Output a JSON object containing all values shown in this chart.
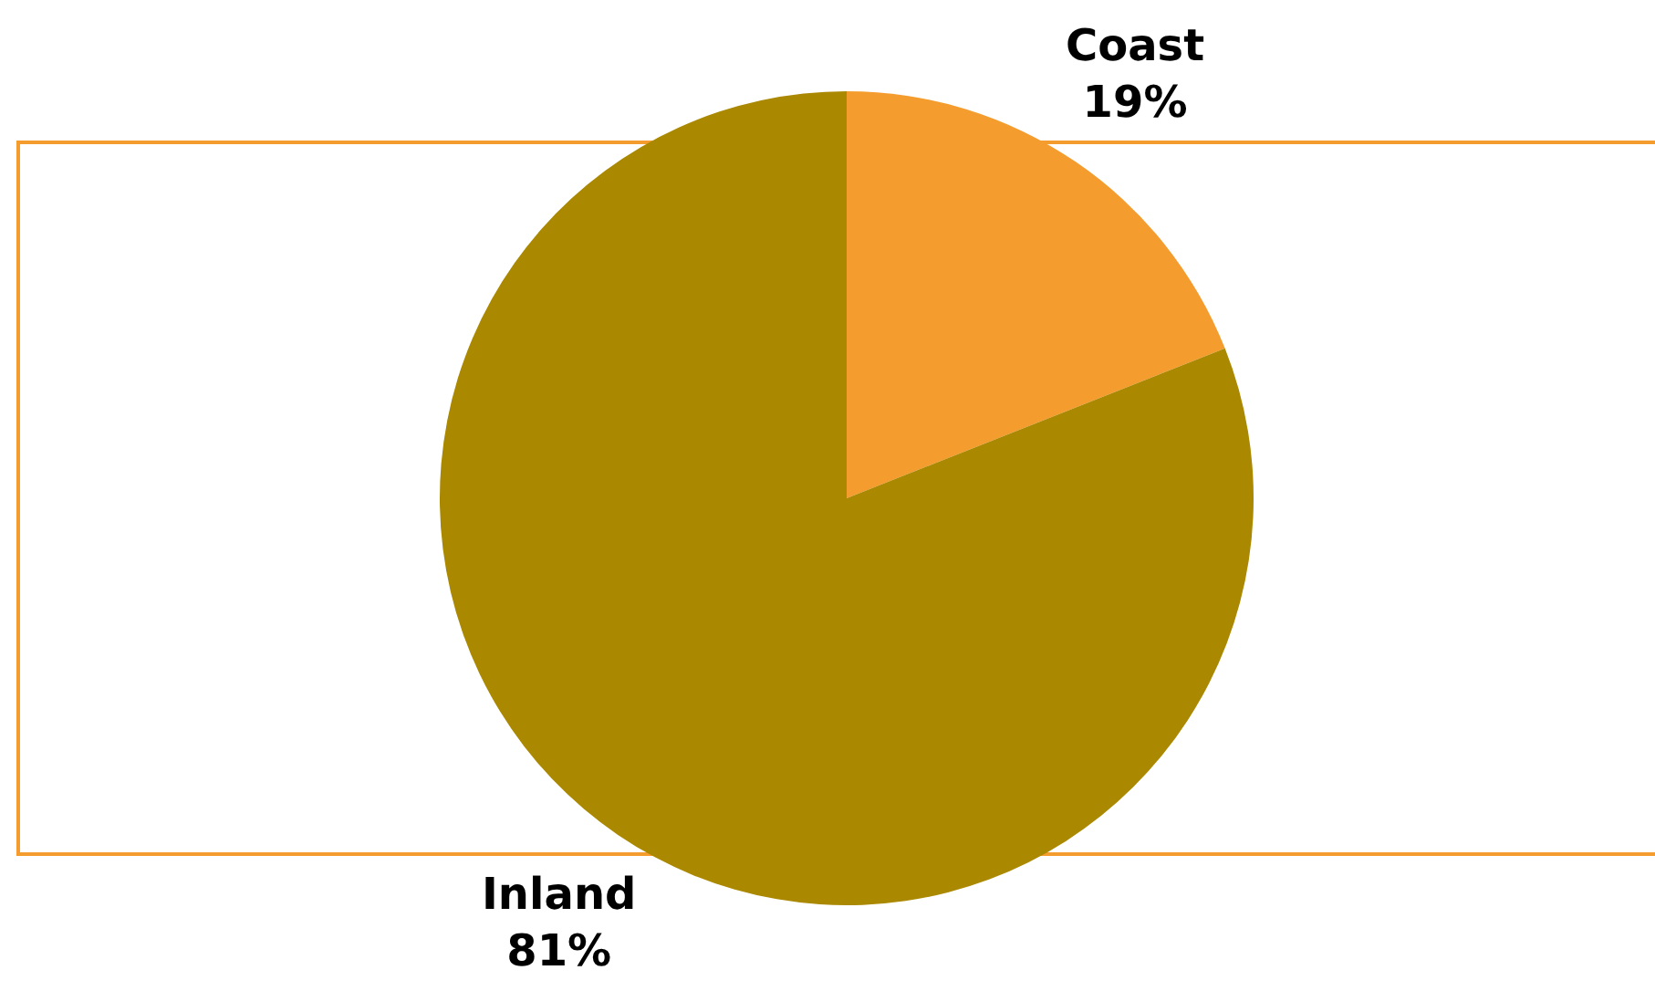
{
  "chart_data": {
    "type": "pie",
    "categories": [
      "Coast",
      "Inland"
    ],
    "values": [
      19,
      81
    ],
    "value_labels": [
      "19%",
      "81%"
    ],
    "colors": [
      "#f49d2e",
      "#aa8800"
    ],
    "legend": false
  }
}
